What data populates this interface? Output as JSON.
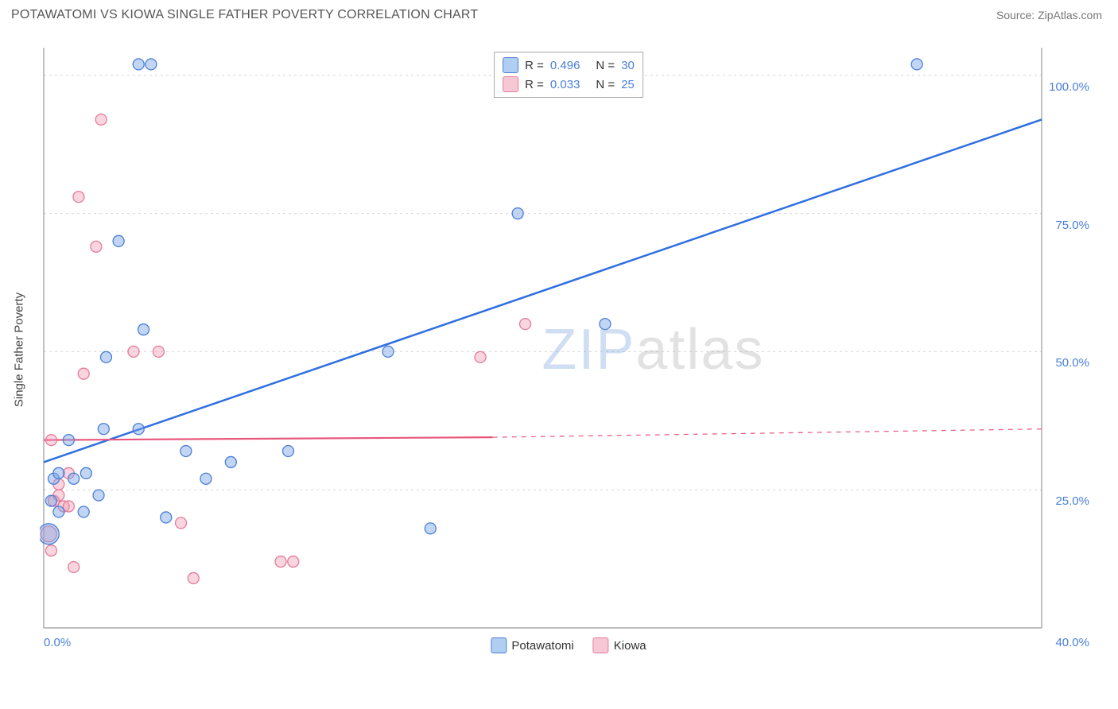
{
  "title": "POTAWATOMI VS KIOWA SINGLE FATHER POVERTY CORRELATION CHART",
  "source_label": "Source: ZipAtlas.com",
  "y_axis_label": "Single Father Poverty",
  "watermark_zip": "ZIP",
  "watermark_atlas": "atlas",
  "chart": {
    "type": "scatter",
    "xlim": [
      0,
      40
    ],
    "ylim": [
      0,
      105
    ],
    "x_ticks": [
      {
        "v": 0,
        "label": "0.0%"
      },
      {
        "v": 40,
        "label": "40.0%"
      }
    ],
    "y_ticks": [
      {
        "v": 25,
        "label": "25.0%"
      },
      {
        "v": 50,
        "label": "50.0%"
      },
      {
        "v": 75,
        "label": "75.0%"
      },
      {
        "v": 100,
        "label": "100.0%"
      }
    ],
    "grid_color": "#d8d8d8",
    "axis_color": "#999999",
    "background_color": "#ffffff",
    "series": [
      {
        "name": "Potawatomi",
        "fill": "rgba(120,165,230,0.45)",
        "stroke": "#4a7fd8",
        "r_value": "0.496",
        "n_value": "30",
        "trend": {
          "x1": 0,
          "y1": 30,
          "x2": 40,
          "y2": 92,
          "stroke": "#2f6fe0",
          "width": 2.5,
          "dash": "none"
        },
        "points": [
          {
            "x": 0.2,
            "y": 17,
            "r": 13
          },
          {
            "x": 0.3,
            "y": 23,
            "r": 7
          },
          {
            "x": 0.4,
            "y": 27,
            "r": 7
          },
          {
            "x": 0.6,
            "y": 28,
            "r": 7
          },
          {
            "x": 0.6,
            "y": 21,
            "r": 7
          },
          {
            "x": 1.2,
            "y": 27,
            "r": 7
          },
          {
            "x": 1.0,
            "y": 34,
            "r": 7
          },
          {
            "x": 1.7,
            "y": 28,
            "r": 7
          },
          {
            "x": 1.6,
            "y": 21,
            "r": 7
          },
          {
            "x": 2.2,
            "y": 24,
            "r": 7
          },
          {
            "x": 2.4,
            "y": 36,
            "r": 7
          },
          {
            "x": 2.5,
            "y": 49,
            "r": 7
          },
          {
            "x": 3.0,
            "y": 70,
            "r": 7
          },
          {
            "x": 3.8,
            "y": 102,
            "r": 7
          },
          {
            "x": 4.3,
            "y": 102,
            "r": 7
          },
          {
            "x": 3.8,
            "y": 36,
            "r": 7
          },
          {
            "x": 4.0,
            "y": 54,
            "r": 7
          },
          {
            "x": 4.9,
            "y": 20,
            "r": 7
          },
          {
            "x": 5.7,
            "y": 32,
            "r": 7
          },
          {
            "x": 6.5,
            "y": 27,
            "r": 7
          },
          {
            "x": 7.5,
            "y": 30,
            "r": 7
          },
          {
            "x": 9.8,
            "y": 32,
            "r": 7
          },
          {
            "x": 13.8,
            "y": 50,
            "r": 7
          },
          {
            "x": 15.5,
            "y": 18,
            "r": 7
          },
          {
            "x": 19.0,
            "y": 75,
            "r": 7
          },
          {
            "x": 22.5,
            "y": 55,
            "r": 7
          },
          {
            "x": 35.0,
            "y": 102,
            "r": 7
          }
        ]
      },
      {
        "name": "Kiowa",
        "fill": "rgba(240,150,175,0.40)",
        "stroke": "#e57b9a",
        "r_value": "0.033",
        "n_value": "25",
        "trend_solid": {
          "x1": 0,
          "y1": 34,
          "x2": 18,
          "y2": 34.5,
          "stroke": "#e8577e",
          "width": 2.2
        },
        "trend_dash": {
          "x1": 18,
          "y1": 34.5,
          "x2": 40,
          "y2": 36,
          "stroke": "#e8577e",
          "width": 1.2,
          "dash": "6 6"
        },
        "points": [
          {
            "x": 0.2,
            "y": 17,
            "r": 10
          },
          {
            "x": 0.3,
            "y": 14,
            "r": 7
          },
          {
            "x": 0.3,
            "y": 34,
            "r": 7
          },
          {
            "x": 0.4,
            "y": 23,
            "r": 7
          },
          {
            "x": 0.6,
            "y": 24,
            "r": 7
          },
          {
            "x": 0.6,
            "y": 26,
            "r": 7
          },
          {
            "x": 0.8,
            "y": 22,
            "r": 7
          },
          {
            "x": 1.0,
            "y": 22,
            "r": 7
          },
          {
            "x": 1.0,
            "y": 28,
            "r": 7
          },
          {
            "x": 1.2,
            "y": 11,
            "r": 7
          },
          {
            "x": 1.6,
            "y": 46,
            "r": 7
          },
          {
            "x": 1.4,
            "y": 78,
            "r": 7
          },
          {
            "x": 2.1,
            "y": 69,
            "r": 7
          },
          {
            "x": 2.3,
            "y": 92,
            "r": 7
          },
          {
            "x": 3.6,
            "y": 50,
            "r": 7
          },
          {
            "x": 4.6,
            "y": 50,
            "r": 7
          },
          {
            "x": 5.5,
            "y": 19,
            "r": 7
          },
          {
            "x": 6.0,
            "y": 9,
            "r": 7
          },
          {
            "x": 9.5,
            "y": 12,
            "r": 7
          },
          {
            "x": 10.0,
            "y": 12,
            "r": 7
          },
          {
            "x": 17.5,
            "y": 49,
            "r": 7
          },
          {
            "x": 19.3,
            "y": 55,
            "r": 7
          }
        ]
      }
    ],
    "legend_swatch": {
      "potawatomi_fill": "#b0cdf2",
      "potawatomi_stroke": "#4a7fd8",
      "kiowa_fill": "#f6c7d4",
      "kiowa_stroke": "#e57b9a"
    }
  }
}
